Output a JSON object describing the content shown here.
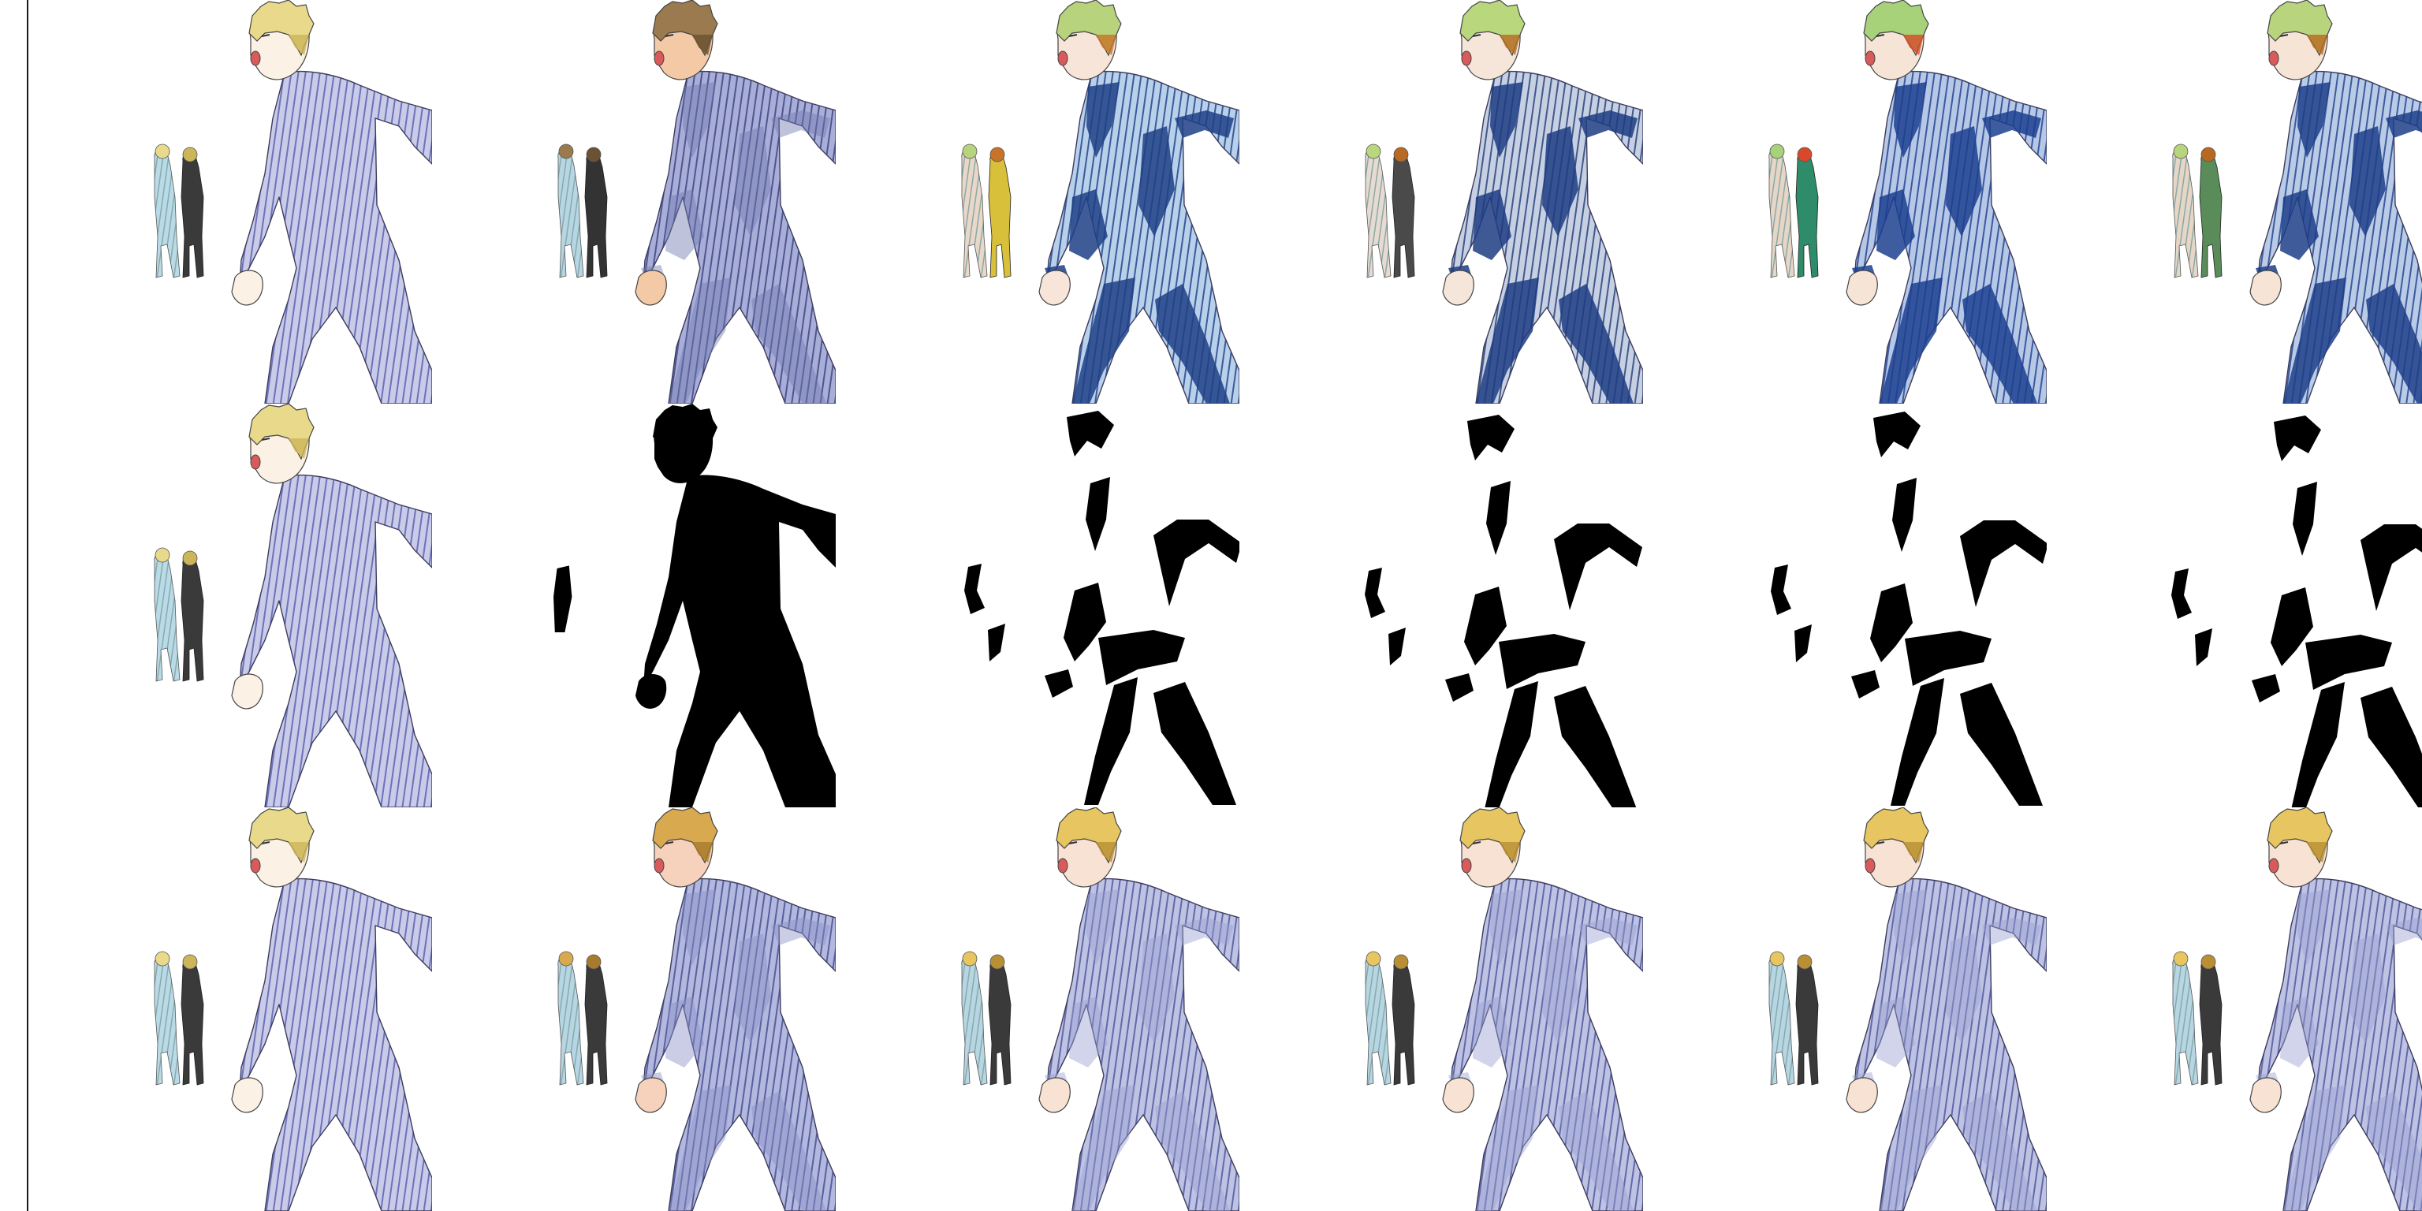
{
  "figure": {
    "rows": [
      {
        "key": "original_and_color_variants",
        "cells": [
          {
            "style": "flat",
            "mask": false,
            "hair": "#e9d98a",
            "hairDark": "#cdb55a",
            "skin": "#fbf1e4",
            "suitLight": "#c9cbe8",
            "suitStripe": "#6c73b8",
            "suitShadow": "#aab0d8",
            "smallA": "#b9dbe8",
            "smallB": "#3a3a3a"
          },
          {
            "style": "shaded",
            "mask": false,
            "hair": "#9a7a4e",
            "hairDark": "#6b5233",
            "skin": "#f4c9a6",
            "suitLight": "#a9aed8",
            "suitStripe": "#4e568f",
            "suitShadow": "#6f77b0",
            "smallA": "#b7d6e3",
            "smallB": "#333333"
          },
          {
            "style": "blue",
            "mask": false,
            "hair": "#b7d37b",
            "hairDark": "#c8732a",
            "skin": "#f6e5d8",
            "suitLight": "#b9d0ea",
            "suitStripe": "#3a5c9a",
            "suitShadow": "#1f3f86",
            "smallA": "#e9d7c8",
            "smallB": "#d8c03a"
          },
          {
            "style": "blue",
            "mask": false,
            "hair": "#b9d77c",
            "hairDark": "#b86a22",
            "skin": "#f6e6da",
            "suitLight": "#c6d0e2",
            "suitStripe": "#41598c",
            "suitShadow": "#1d3c83",
            "smallA": "#e7dad0",
            "smallB": "#4a4a4a"
          },
          {
            "style": "blue",
            "mask": false,
            "hair": "#a7d279",
            "hairDark": "#d8482a",
            "skin": "#f6e4d6",
            "suitLight": "#b6c8e6",
            "suitStripe": "#3b5aa0",
            "suitShadow": "#1c3f8f",
            "smallA": "#e6d6c6",
            "smallB": "#2f8c6a"
          },
          {
            "style": "blue",
            "mask": false,
            "hair": "#b8d47c",
            "hairDark": "#b8681f",
            "skin": "#f6e4d6",
            "suitLight": "#b9cbe6",
            "suitStripe": "#3d5b9c",
            "suitShadow": "#1d3e88",
            "smallA": "#e6d6c6",
            "smallB": "#5a8c5a"
          }
        ]
      },
      {
        "key": "shadow_masks",
        "cells": [
          {
            "style": "flat",
            "mask": false,
            "hair": "#e9d98a",
            "hairDark": "#cdb55a",
            "skin": "#fbf1e4",
            "suitLight": "#c9cbe8",
            "suitStripe": "#6c73b8",
            "suitShadow": "#aab0d8",
            "smallA": "#b9dbe8",
            "smallB": "#3a3a3a"
          },
          {
            "style": "silhouette",
            "mask": true
          },
          {
            "style": "mask",
            "mask": true
          },
          {
            "style": "mask",
            "mask": true
          },
          {
            "style": "mask",
            "mask": true
          },
          {
            "style": "mask",
            "mask": true
          }
        ]
      },
      {
        "key": "shadow_composites",
        "cells": [
          {
            "style": "flat",
            "mask": false,
            "hair": "#e9d98a",
            "hairDark": "#cdb55a",
            "skin": "#fbf1e4",
            "suitLight": "#c9cbe8",
            "suitStripe": "#6c73b8",
            "suitShadow": "#aab0d8",
            "smallA": "#b9dbe8",
            "smallB": "#3a3a3a"
          },
          {
            "style": "shaded",
            "mask": false,
            "hair": "#d8a94f",
            "hairDark": "#a87a2d",
            "skin": "#f6d2bd",
            "suitLight": "#b3b8de",
            "suitStripe": "#59609e",
            "suitShadow": "#8a91c6",
            "smallA": "#b7d6e3",
            "smallB": "#3a3a3a"
          },
          {
            "style": "shaded",
            "mask": false,
            "hair": "#e7c560",
            "hairDark": "#b88f35",
            "skin": "#f8e2d4",
            "suitLight": "#bec3e4",
            "suitStripe": "#6269a8",
            "suitShadow": "#989fd0",
            "smallA": "#b7d6e3",
            "smallB": "#3a3a3a"
          },
          {
            "style": "shaded",
            "mask": false,
            "hair": "#e7c560",
            "hairDark": "#b88f35",
            "skin": "#f8e2d4",
            "suitLight": "#bec3e4",
            "suitStripe": "#6269a8",
            "suitShadow": "#989fd0",
            "smallA": "#b7d6e3",
            "smallB": "#3a3a3a"
          },
          {
            "style": "shaded",
            "mask": false,
            "hair": "#e7c560",
            "hairDark": "#b88f35",
            "skin": "#f8e2d4",
            "suitLight": "#bec3e4",
            "suitStripe": "#6269a8",
            "suitShadow": "#989fd0",
            "smallA": "#b7d6e3",
            "smallB": "#3a3a3a"
          },
          {
            "style": "shaded",
            "mask": false,
            "hair": "#e7c560",
            "hairDark": "#b88f35",
            "skin": "#f8e2d4",
            "suitLight": "#bec3e4",
            "suitStripe": "#6269a8",
            "suitShadow": "#989fd0",
            "smallA": "#b7d6e3",
            "smallB": "#3a3a3a"
          }
        ]
      }
    ]
  }
}
